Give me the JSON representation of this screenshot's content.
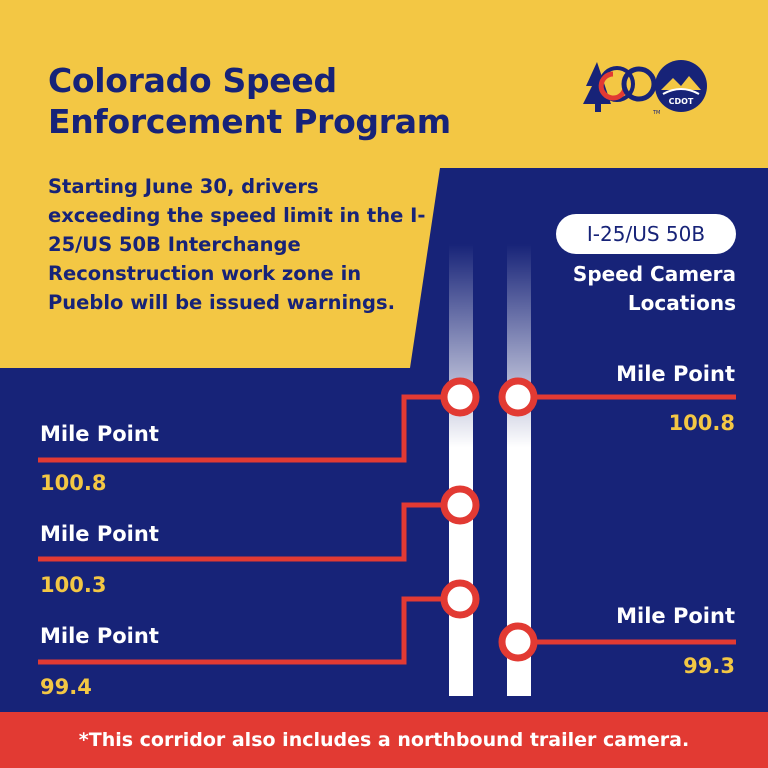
{
  "title_line1": "Colorado Speed",
  "title_line2": "Enforcement Program",
  "intro": "Starting June 30, drivers exceeding the speed limit in the I-25/US 50B Interchange Reconstruction work zone in Pueblo will be issued warnings.",
  "badge": "I-25/US 50B",
  "camera_title_line1": "Speed Camera",
  "camera_title_line2": "Locations",
  "markers": [
    {
      "label": "Mile Point",
      "value": "100.8"
    },
    {
      "label": "Mile Point",
      "value": "100.3"
    },
    {
      "label": "Mile Point",
      "value": "99.4"
    },
    {
      "label": "Mile Point",
      "value": "100.8"
    },
    {
      "label": "Mile Point",
      "value": "99.3"
    }
  ],
  "footer": "*This corridor also includes a northbound trailer camera.",
  "logo_text": "CDOT",
  "logo_tm": "TM",
  "colors": {
    "navy": "#172378",
    "yellow": "#f3c744",
    "red": "#e23a33",
    "white": "#ffffff"
  },
  "icons": [
    "colorado-150-logo-icon",
    "cdot-logo-icon"
  ]
}
